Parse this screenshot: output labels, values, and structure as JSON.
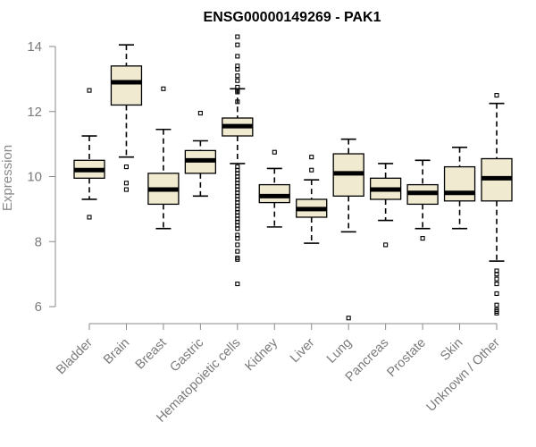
{
  "chart_data": {
    "type": "box",
    "title": "ENSG00000149269 - PAK1",
    "ylabel": "Expression",
    "xlabel": "",
    "ylim": [
      5.3,
      14.2
    ],
    "yticks": [
      6,
      8,
      10,
      12,
      14
    ],
    "grid": false,
    "box_fill": "#f0ead0",
    "categories": [
      "Bladder",
      "Brain",
      "Breast",
      "Gastric",
      "Hematopoietic cells",
      "Kidney",
      "Liver",
      "Lung",
      "Pancreas",
      "Prostate",
      "Skin",
      "Unknown / Other"
    ],
    "boxes": [
      {
        "min": 9.3,
        "q1": 9.95,
        "median": 10.2,
        "q3": 10.5,
        "max": 11.25,
        "outliers": [
          12.65,
          8.75
        ]
      },
      {
        "min": 10.6,
        "q1": 12.2,
        "median": 12.9,
        "q3": 13.4,
        "max": 14.05,
        "outliers": [
          10.3,
          9.8,
          9.6
        ]
      },
      {
        "min": 8.4,
        "q1": 9.15,
        "median": 9.6,
        "q3": 10.1,
        "max": 11.45,
        "outliers": [
          12.7
        ]
      },
      {
        "min": 9.4,
        "q1": 10.1,
        "median": 10.5,
        "q3": 10.8,
        "max": 11.1,
        "outliers": [
          11.95
        ]
      },
      {
        "min": 10.4,
        "q1": 11.25,
        "median": 11.55,
        "q3": 11.8,
        "max": 12.7,
        "outliers": [
          14.3,
          14.05,
          13.7,
          13.4,
          13.3,
          13.1,
          12.95,
          12.75,
          12.65,
          12.6,
          12.3,
          10.3,
          10.2,
          10.1,
          10.0,
          9.9,
          9.8,
          9.7,
          9.6,
          9.5,
          9.4,
          9.3,
          9.2,
          9.1,
          9.0,
          8.9,
          8.8,
          8.7,
          8.6,
          8.5,
          8.4,
          8.2,
          8.1,
          7.9,
          7.7,
          7.5,
          7.45,
          6.7
        ]
      },
      {
        "min": 8.45,
        "q1": 9.2,
        "median": 9.4,
        "q3": 9.75,
        "max": 10.25,
        "outliers": [
          10.75
        ]
      },
      {
        "min": 7.95,
        "q1": 8.75,
        "median": 9.0,
        "q3": 9.3,
        "max": 9.9,
        "outliers": [
          10.6,
          10.2
        ]
      },
      {
        "min": 8.3,
        "q1": 9.4,
        "median": 10.1,
        "q3": 10.7,
        "max": 11.15,
        "outliers": [
          5.65
        ]
      },
      {
        "min": 8.65,
        "q1": 9.3,
        "median": 9.6,
        "q3": 9.95,
        "max": 10.4,
        "outliers": [
          7.9
        ]
      },
      {
        "min": 8.4,
        "q1": 9.15,
        "median": 9.5,
        "q3": 9.75,
        "max": 10.5,
        "outliers": [
          8.1
        ]
      },
      {
        "min": 8.4,
        "q1": 9.25,
        "median": 9.5,
        "q3": 10.3,
        "max": 10.9,
        "outliers": []
      },
      {
        "min": 7.4,
        "q1": 9.25,
        "median": 9.95,
        "q3": 10.55,
        "max": 12.25,
        "outliers": [
          12.5,
          7.1,
          7.0,
          6.85,
          6.7,
          6.4,
          6.05,
          5.9,
          5.85,
          5.8
        ]
      }
    ]
  }
}
